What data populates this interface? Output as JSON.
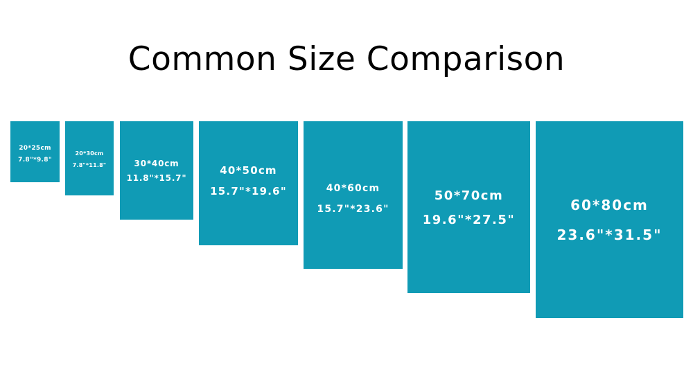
{
  "title": "Common Size Comparison",
  "box_color": "#109bb5",
  "sizes": [
    {
      "cm": "20*25cm",
      "inch": "7.8\"*9.8\""
    },
    {
      "cm": "20*30cm",
      "inch": "7.8\"*11.8\""
    },
    {
      "cm": "30*40cm",
      "inch": "11.8\"*15.7\""
    },
    {
      "cm": "40*50cm",
      "inch": "15.7\"*19.6\""
    },
    {
      "cm": "40*60cm",
      "inch": "15.7\"*23.6\""
    },
    {
      "cm": "50*70cm",
      "inch": "19.6\"*27.5\""
    },
    {
      "cm": "60*80cm",
      "inch": "23.6\"*31.5\""
    }
  ]
}
